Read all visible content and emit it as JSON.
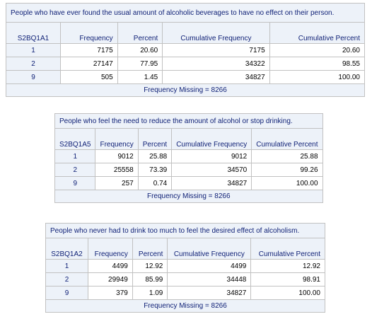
{
  "tables": [
    {
      "title": "People who have ever found the usual amount of alcoholic beverages to have no effect on their person.",
      "variable": "S2BQ1A1",
      "headers": {
        "frequency": "Frequency",
        "percent": "Percent",
        "cum_freq": "Cumulative Frequency",
        "cum_pct": "Cumulative Percent"
      },
      "rows": [
        {
          "value": "1",
          "frequency": "7175",
          "percent": "20.60",
          "cum_freq": "7175",
          "cum_pct": "20.60"
        },
        {
          "value": "2",
          "frequency": "27147",
          "percent": "77.95",
          "cum_freq": "34322",
          "cum_pct": "98.55"
        },
        {
          "value": "9",
          "frequency": "505",
          "percent": "1.45",
          "cum_freq": "34827",
          "cum_pct": "100.00"
        }
      ],
      "footer": "Frequency Missing = 8266"
    },
    {
      "title": "People who feel the need to reduce the amount of alcohol or stop drinking.",
      "variable": "S2BQ1A5",
      "headers": {
        "frequency": "Frequency",
        "percent": "Percent",
        "cum_freq": "Cumulative Frequency",
        "cum_pct": "Cumulative Percent"
      },
      "rows": [
        {
          "value": "1",
          "frequency": "9012",
          "percent": "25.88",
          "cum_freq": "9012",
          "cum_pct": "25.88"
        },
        {
          "value": "2",
          "frequency": "25558",
          "percent": "73.39",
          "cum_freq": "34570",
          "cum_pct": "99.26"
        },
        {
          "value": "9",
          "frequency": "257",
          "percent": "0.74",
          "cum_freq": "34827",
          "cum_pct": "100.00"
        }
      ],
      "footer": "Frequency Missing = 8266"
    },
    {
      "title": "People who never had to drink too much to feel the desired effect of alcoholism.",
      "variable": "S2BQ1A2",
      "headers": {
        "frequency": "Frequency",
        "percent": "Percent",
        "cum_freq": "Cumulative Frequency",
        "cum_pct": "Cumulative Percent"
      },
      "rows": [
        {
          "value": "1",
          "frequency": "4499",
          "percent": "12.92",
          "cum_freq": "4499",
          "cum_pct": "12.92"
        },
        {
          "value": "2",
          "frequency": "29949",
          "percent": "85.99",
          "cum_freq": "34448",
          "cum_pct": "98.91"
        },
        {
          "value": "9",
          "frequency": "379",
          "percent": "1.09",
          "cum_freq": "34827",
          "cum_pct": "100.00"
        }
      ],
      "footer": "Frequency Missing = 8266"
    }
  ]
}
